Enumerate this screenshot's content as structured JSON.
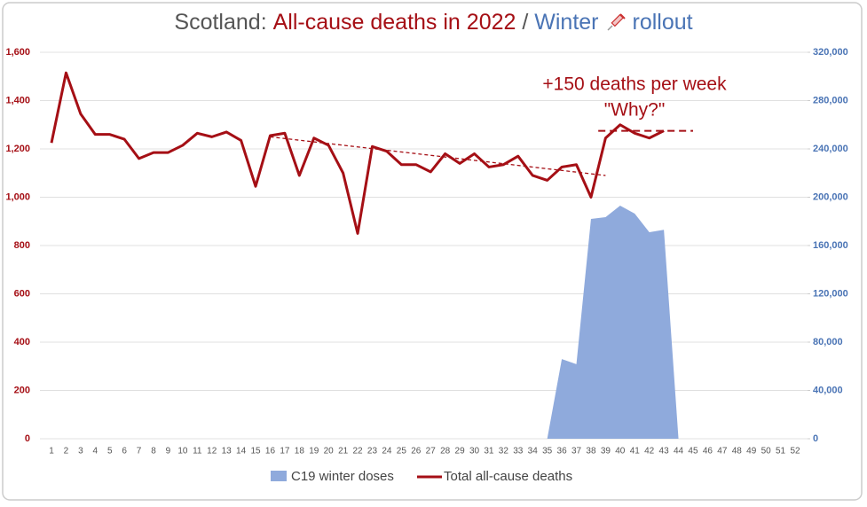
{
  "chart_data": {
    "type": "line",
    "title_parts": [
      {
        "text": "Scotland:",
        "color": "#555555"
      },
      {
        "text": "All-cause deaths in 2022",
        "color": "#a50f15"
      },
      {
        "text": "/",
        "color": "#555555"
      },
      {
        "text": "Winter",
        "color": "#4a74b5"
      },
      {
        "text": "rollout",
        "color": "#4a74b5"
      }
    ],
    "categories": [
      1,
      2,
      3,
      4,
      5,
      6,
      7,
      8,
      9,
      10,
      11,
      12,
      13,
      14,
      15,
      16,
      17,
      18,
      19,
      20,
      21,
      22,
      23,
      24,
      25,
      26,
      27,
      28,
      29,
      30,
      31,
      32,
      33,
      34,
      35,
      36,
      37,
      38,
      39,
      40,
      41,
      42,
      43,
      44,
      45,
      46,
      47,
      48,
      49,
      50,
      51,
      52
    ],
    "series": [
      {
        "name": "C19 winter doses",
        "color": "#8faadc",
        "type": "area",
        "axis": "y2",
        "values": [
          null,
          null,
          null,
          null,
          null,
          null,
          null,
          null,
          null,
          null,
          null,
          null,
          null,
          null,
          null,
          null,
          null,
          null,
          null,
          null,
          null,
          null,
          null,
          null,
          null,
          null,
          null,
          null,
          null,
          null,
          null,
          null,
          null,
          null,
          0,
          66000,
          61700,
          182000,
          183500,
          193000,
          186400,
          171000,
          173000,
          0,
          null,
          null,
          null,
          null,
          null,
          null,
          null,
          null
        ]
      },
      {
        "name": "Total all-cause deaths",
        "color": "#a50f15",
        "type": "line",
        "values": [
          1225,
          1515,
          1345,
          1260,
          1260,
          1240,
          1160,
          1185,
          1185,
          1215,
          1265,
          1250,
          1270,
          1235,
          1045,
          1255,
          1265,
          1090,
          1245,
          1215,
          1100,
          850,
          1210,
          1190,
          1135,
          1135,
          1105,
          1180,
          1140,
          1180,
          1125,
          1135,
          1170,
          1090,
          1070,
          1125,
          1135,
          1000,
          1245,
          1300,
          1265,
          1245,
          1275,
          null,
          null,
          null,
          null,
          null,
          null,
          null,
          null,
          null
        ]
      }
    ],
    "ylim": [
      0,
      1600
    ],
    "yticks": [
      0,
      200,
      400,
      600,
      800,
      {
        "value": 1000,
        "label": "1,000"
      },
      {
        "value": 1200,
        "label": "1,200"
      },
      {
        "value": 1400,
        "label": "1,400"
      },
      {
        "value": 1600,
        "label": "1,600"
      }
    ],
    "y2lim": [
      0,
      320000
    ],
    "y2ticks": [
      0,
      {
        "value": 40000,
        "label": "40,000"
      },
      {
        "value": 80000,
        "label": "80,000"
      },
      {
        "value": 120000,
        "label": "120,000"
      },
      {
        "value": 160000,
        "label": "160,000"
      },
      {
        "value": 200000,
        "label": "200,000"
      },
      {
        "value": 240000,
        "label": "240,000"
      },
      {
        "value": 280000,
        "label": "280,000"
      },
      {
        "value": 320000,
        "label": "320,000"
      }
    ],
    "grid": true,
    "legend": "bottom",
    "annotations": [
      "+150 deaths per week",
      "\"Why?\""
    ],
    "trend_lines": [
      {
        "x": [
          16,
          39
        ],
        "y": [
          1250,
          1090
        ]
      },
      {
        "x": [
          38.5,
          45
        ],
        "y": [
          1275,
          1275
        ]
      }
    ]
  }
}
